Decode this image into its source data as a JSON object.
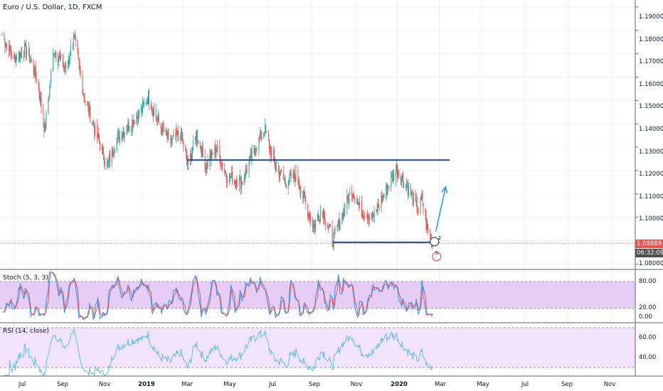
{
  "chart_title": "Euro / U.S. Dollar, 1D, FXCM",
  "colors": {
    "up": "#26a69a",
    "down": "#ef5350",
    "drawing": "#1e4e8c",
    "arrow": "#2196f3",
    "stoch_band": "#e1c4f5",
    "rsi_band": "#f1e3fb",
    "stoch_k": "#2196f3",
    "stoch_d": "#ef5350",
    "rsi_line": "#5fbde9",
    "last_price_tag": "#ef5350",
    "countdown_tag": "#505050"
  },
  "price_axis": {
    "ticks": [
      "1.19000",
      "1.18000",
      "1.17000",
      "1.16000",
      "1.15000",
      "1.14000",
      "1.13000",
      "1.12000",
      "1.11000",
      "1.10000",
      "1.08000"
    ],
    "last_price": "1.08889",
    "countdown": "06:32:09"
  },
  "time_axis": {
    "labels": [
      "Jul",
      "Sep",
      "Nov",
      "2019",
      "Mar",
      "May",
      "Jul",
      "Sep",
      "Nov",
      "2020",
      "Mar",
      "May",
      "Jul",
      "Sep",
      "Nov"
    ]
  },
  "indicators": {
    "stoch": {
      "label": "Stoch (5, 3, 3)",
      "ticks": [
        "80.00",
        "20.00",
        "0.00"
      ]
    },
    "rsi": {
      "label": "RSI (14, close)",
      "ticks": [
        "60.00",
        "40.00"
      ]
    }
  },
  "badges": {
    "circle_1": "2",
    "circle_2": "5"
  },
  "chart_data": {
    "type": "candlestick",
    "series_anchor_closes": [
      [
        "2018-06-15",
        1.178
      ],
      [
        "2018-07-01",
        1.168
      ],
      [
        "2018-07-20",
        1.172
      ],
      [
        "2018-08-05",
        1.158
      ],
      [
        "2018-08-15",
        1.137
      ],
      [
        "2018-08-28",
        1.172
      ],
      [
        "2018-09-15",
        1.163
      ],
      [
        "2018-09-25",
        1.178
      ],
      [
        "2018-10-10",
        1.152
      ],
      [
        "2018-10-25",
        1.138
      ],
      [
        "2018-11-12",
        1.122
      ],
      [
        "2018-11-25",
        1.133
      ],
      [
        "2018-12-15",
        1.14
      ],
      [
        "2019-01-01",
        1.146
      ],
      [
        "2019-01-10",
        1.152
      ],
      [
        "2019-01-25",
        1.14
      ],
      [
        "2019-02-10",
        1.132
      ],
      [
        "2019-02-25",
        1.136
      ],
      [
        "2019-03-08",
        1.122
      ],
      [
        "2019-03-20",
        1.136
      ],
      [
        "2019-04-02",
        1.122
      ],
      [
        "2019-04-17",
        1.13
      ],
      [
        "2019-05-01",
        1.118
      ],
      [
        "2019-05-23",
        1.115
      ],
      [
        "2019-06-10",
        1.128
      ],
      [
        "2019-06-25",
        1.138
      ],
      [
        "2019-07-10",
        1.122
      ],
      [
        "2019-07-25",
        1.115
      ],
      [
        "2019-08-10",
        1.118
      ],
      [
        "2019-08-20",
        1.108
      ],
      [
        "2019-09-03",
        1.096
      ],
      [
        "2019-09-15",
        1.104
      ],
      [
        "2019-10-01",
        1.09
      ],
      [
        "2019-10-15",
        1.102
      ],
      [
        "2019-10-28",
        1.112
      ],
      [
        "2019-11-10",
        1.103
      ],
      [
        "2019-11-29",
        1.1
      ],
      [
        "2019-12-10",
        1.108
      ],
      [
        "2019-12-31",
        1.121
      ],
      [
        "2020-01-15",
        1.113
      ],
      [
        "2020-01-31",
        1.103
      ],
      [
        "2020-02-05",
        1.108
      ],
      [
        "2020-02-12",
        1.095
      ],
      [
        "2020-02-21",
        1.088
      ]
    ],
    "horizontal_levels": [
      1.1245,
      1.0893
    ],
    "forecast_arrow": {
      "from": [
        "2020-02-25",
        1.094
      ],
      "to": [
        "2020-03-10",
        1.113
      ]
    },
    "ylim": [
      1.078,
      1.193
    ],
    "xlim": [
      "2018-06-12",
      "2020-12-06"
    ]
  }
}
